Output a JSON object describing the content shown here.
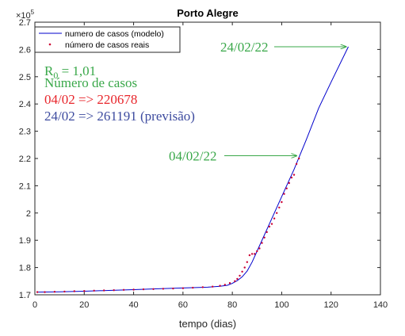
{
  "chart_data": {
    "type": "line",
    "title": "Porto Alegre",
    "xlabel": "tempo (dias)",
    "ylabel": "",
    "y_exponent_label": "×10",
    "y_exponent_power": "5",
    "xlim": [
      0,
      140
    ],
    "ylim": [
      1.7,
      2.7
    ],
    "x_ticks": [
      "0",
      "20",
      "40",
      "60",
      "80",
      "100",
      "120",
      "140"
    ],
    "y_ticks": [
      "1.7",
      "1.8",
      "1.9",
      "2",
      "2.1",
      "2.2",
      "2.3",
      "2.4",
      "2.5",
      "2.6",
      "2.7"
    ],
    "grid": false,
    "legend_position": "top-left",
    "colors": {
      "model": "#0000cc",
      "real": "#cc0033",
      "annotation": "#3aa84a",
      "forecast": "#3d4b9f"
    },
    "series": [
      {
        "name": "numero de casos (modelo)",
        "style": "line",
        "x": [
          1,
          10,
          20,
          30,
          40,
          50,
          60,
          70,
          75,
          78,
          80,
          82,
          84,
          86,
          88,
          90,
          95,
          100,
          105,
          110,
          115,
          120,
          127
        ],
        "y": [
          1.71,
          1.711,
          1.713,
          1.716,
          1.719,
          1.722,
          1.725,
          1.728,
          1.731,
          1.735,
          1.742,
          1.752,
          1.766,
          1.787,
          1.82,
          1.86,
          1.96,
          2.06,
          2.16,
          2.27,
          2.385,
          2.48,
          2.61
        ]
      },
      {
        "name": "número de casos reais",
        "style": "points",
        "x": [
          1,
          4,
          8,
          12,
          16,
          20,
          24,
          28,
          32,
          36,
          40,
          44,
          48,
          52,
          56,
          60,
          64,
          68,
          72,
          75,
          77,
          79,
          81,
          82,
          83,
          84,
          85,
          86,
          87,
          88,
          89,
          90,
          91,
          92,
          93,
          94,
          95,
          96,
          97,
          98,
          99,
          100,
          101,
          102,
          103,
          104,
          105,
          106,
          107
        ],
        "y": [
          1.71,
          1.71,
          1.711,
          1.712,
          1.713,
          1.714,
          1.715,
          1.716,
          1.717,
          1.718,
          1.719,
          1.72,
          1.721,
          1.722,
          1.723,
          1.724,
          1.726,
          1.728,
          1.73,
          1.733,
          1.737,
          1.743,
          1.75,
          1.758,
          1.77,
          1.785,
          1.8,
          1.82,
          1.845,
          1.85,
          1.85,
          1.86,
          1.87,
          1.89,
          1.91,
          1.93,
          1.95,
          1.96,
          1.98,
          2.0,
          2.02,
          2.04,
          2.07,
          2.09,
          2.11,
          2.13,
          2.14,
          2.18,
          2.2
        ]
      }
    ],
    "annotations": [
      {
        "text": "24/02/22",
        "x": 127,
        "y": 2.61
      },
      {
        "text": "04/02/22",
        "x": 107,
        "y": 2.21
      }
    ],
    "text_box": {
      "r0_prefix": "R",
      "r0_sub": "0",
      "r0_value": " = 1,01",
      "line2": "Número de casos",
      "line3": "04/02 => 220678",
      "line4": "24/02 => 261191 (previsão)"
    }
  }
}
